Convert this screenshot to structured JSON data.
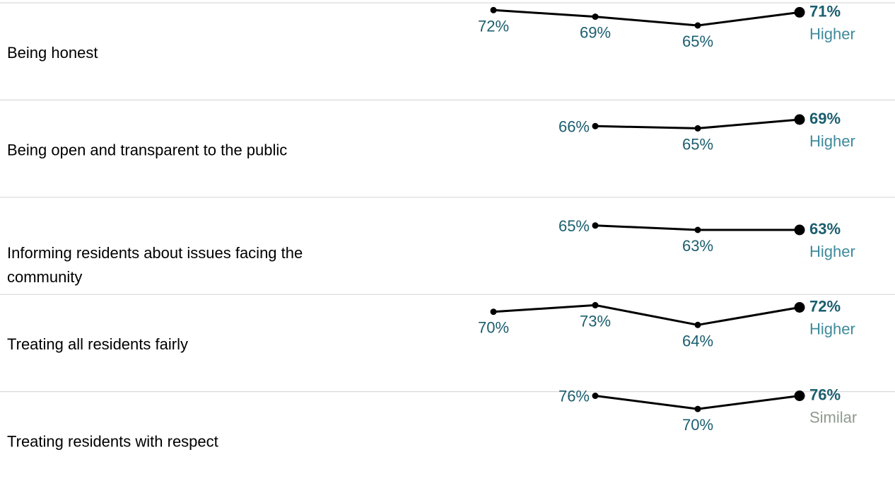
{
  "colors": {
    "value_label": "#1b5e6e",
    "higher": "#3e8a9b",
    "similar": "#8e9a8e",
    "line": "#000000",
    "divider": "#d9d9d9"
  },
  "chart_data": {
    "type": "line",
    "title": "",
    "legend": "none",
    "grid": false,
    "ylim": [
      60,
      80
    ],
    "x": [
      "1",
      "2",
      "3",
      "4"
    ],
    "rows": [
      {
        "label": "Being honest",
        "values": [
          72,
          69,
          65,
          71
        ],
        "value_labels": [
          "72%",
          "69%",
          "65%",
          "71%"
        ],
        "comparison": "Higher"
      },
      {
        "label": "Being open and transparent to the public",
        "values": [
          null,
          66,
          65,
          69
        ],
        "value_labels": [
          null,
          "66%",
          "65%",
          "69%"
        ],
        "comparison": "Higher"
      },
      {
        "label": "Informing residents about issues facing the community",
        "label_lines": [
          "Informing residents about issues facing the",
          "community"
        ],
        "values": [
          null,
          65,
          63,
          63
        ],
        "value_labels": [
          null,
          "65%",
          "63%",
          "63%"
        ],
        "comparison": "Higher"
      },
      {
        "label": "Treating all residents fairly",
        "values": [
          70,
          73,
          64,
          72
        ],
        "value_labels": [
          "70%",
          "73%",
          "64%",
          "72%"
        ],
        "comparison": "Higher"
      },
      {
        "label": "Treating residents with respect",
        "values": [
          null,
          76,
          70,
          76
        ],
        "value_labels": [
          null,
          "76%",
          "70%",
          "76%"
        ],
        "comparison": "Similar"
      }
    ]
  }
}
